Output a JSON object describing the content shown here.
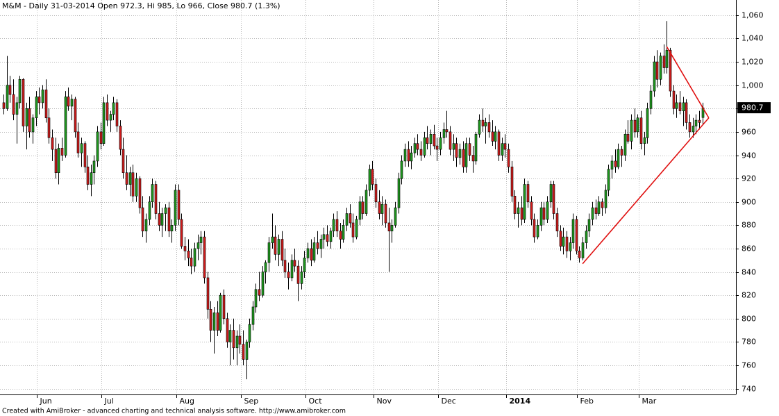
{
  "chart_data": {
    "type": "candlestick",
    "title": "M&M - Daily 31-03-2014 Open 972.3, Hi 985, Lo 966, Close 980.7 (1.3%)",
    "footer": "Created with AmiBroker - advanced charting and technical analysis software. http://www.amibroker.com",
    "up_color": "#1f9a1f",
    "down_color": "#d01c1c",
    "trendline_color": "#e01010",
    "grid": true,
    "ylim": [
      735,
      1073
    ],
    "yticks": [
      740,
      760,
      780,
      800,
      820,
      840,
      860,
      880,
      900,
      920,
      940,
      960,
      980,
      {
        "value": 1000,
        "label": "1,000"
      },
      {
        "value": 1020,
        "label": "1,020"
      },
      {
        "value": 1040,
        "label": "1,040"
      },
      {
        "value": 1060,
        "label": "1,060"
      }
    ],
    "categories": [
      null,
      null,
      null,
      null,
      null,
      null,
      null,
      null,
      null,
      null,
      null,
      "Jun",
      null,
      null,
      null,
      null,
      null,
      null,
      null,
      null,
      null,
      null,
      null,
      null,
      null,
      null,
      null,
      null,
      null,
      null,
      null,
      "Jul",
      null,
      null,
      null,
      null,
      null,
      null,
      null,
      null,
      null,
      null,
      null,
      null,
      null,
      null,
      null,
      null,
      null,
      null,
      null,
      null,
      null,
      null,
      "Aug",
      null,
      null,
      null,
      null,
      null,
      null,
      null,
      null,
      null,
      null,
      null,
      null,
      null,
      null,
      null,
      null,
      null,
      null,
      null,
      "Sep",
      null,
      null,
      null,
      null,
      null,
      null,
      null,
      null,
      null,
      null,
      null,
      null,
      null,
      null,
      null,
      null,
      null,
      null,
      null,
      "Oct",
      null,
      null,
      null,
      null,
      null,
      null,
      null,
      null,
      null,
      null,
      null,
      null,
      null,
      null,
      null,
      null,
      null,
      null,
      null,
      null,
      "Nov",
      null,
      null,
      null,
      null,
      null,
      null,
      null,
      null,
      null,
      null,
      null,
      null,
      null,
      null,
      null,
      null,
      null,
      null,
      null,
      "Dec",
      null,
      null,
      null,
      null,
      null,
      null,
      null,
      null,
      null,
      null,
      null,
      null,
      null,
      null,
      null,
      null,
      null,
      null,
      null,
      null,
      "2014",
      null,
      null,
      null,
      null,
      null,
      null,
      null,
      null,
      null,
      null,
      null,
      null,
      null,
      null,
      null,
      null,
      null,
      null,
      null,
      null,
      null,
      "Feb",
      null,
      null,
      null,
      null,
      null,
      null,
      null,
      null,
      null,
      null,
      null,
      null,
      null,
      null,
      null,
      null,
      null,
      null,
      "Mar",
      null,
      null,
      null,
      null,
      null,
      null,
      null,
      null,
      null,
      null,
      null,
      null,
      null,
      null,
      null,
      null,
      null,
      null,
      null
    ],
    "ohlc": [
      [
        985,
        992,
        975,
        980
      ],
      [
        980,
        1025,
        978,
        1000
      ],
      [
        1000,
        1008,
        985,
        992
      ],
      [
        992,
        1005,
        970,
        975
      ],
      [
        975,
        990,
        950,
        985
      ],
      [
        985,
        1008,
        980,
        1005
      ],
      [
        1005,
        1006,
        960,
        965
      ],
      [
        965,
        985,
        945,
        980
      ],
      [
        980,
        990,
        955,
        960
      ],
      [
        960,
        975,
        950,
        972
      ],
      [
        972,
        995,
        965,
        990
      ],
      [
        990,
        998,
        975,
        985
      ],
      [
        985,
        1000,
        980,
        996
      ],
      [
        996,
        1005,
        968,
        972
      ],
      [
        972,
        980,
        950,
        955
      ],
      [
        955,
        962,
        935,
        945
      ],
      [
        945,
        955,
        920,
        925
      ],
      [
        925,
        950,
        915,
        946
      ],
      [
        946,
        955,
        935,
        940
      ],
      [
        940,
        995,
        938,
        990
      ],
      [
        990,
        998,
        978,
        982
      ],
      [
        982,
        992,
        970,
        988
      ],
      [
        988,
        990,
        955,
        960
      ],
      [
        960,
        968,
        938,
        942
      ],
      [
        942,
        955,
        930,
        950
      ],
      [
        950,
        952,
        925,
        930
      ],
      [
        930,
        940,
        910,
        915
      ],
      [
        915,
        932,
        905,
        925
      ],
      [
        925,
        940,
        915,
        935
      ],
      [
        935,
        965,
        930,
        960
      ],
      [
        960,
        968,
        945,
        950
      ],
      [
        950,
        990,
        948,
        985
      ],
      [
        985,
        992,
        965,
        970
      ],
      [
        970,
        978,
        960,
        975
      ],
      [
        975,
        990,
        970,
        985
      ],
      [
        985,
        988,
        960,
        965
      ],
      [
        965,
        970,
        940,
        945
      ],
      [
        945,
        955,
        920,
        925
      ],
      [
        925,
        940,
        910,
        915
      ],
      [
        915,
        930,
        905,
        925
      ],
      [
        925,
        932,
        900,
        905
      ],
      [
        905,
        925,
        900,
        920
      ],
      [
        920,
        922,
        890,
        895
      ],
      [
        895,
        905,
        870,
        875
      ],
      [
        875,
        890,
        865,
        885
      ],
      [
        885,
        905,
        880,
        900
      ],
      [
        900,
        920,
        895,
        915
      ],
      [
        915,
        918,
        885,
        890
      ],
      [
        890,
        900,
        875,
        880
      ],
      [
        880,
        895,
        870,
        890
      ],
      [
        890,
        898,
        875,
        895
      ],
      [
        895,
        900,
        870,
        875
      ],
      [
        875,
        885,
        865,
        880
      ],
      [
        880,
        915,
        875,
        910
      ],
      [
        910,
        915,
        880,
        885
      ],
      [
        885,
        890,
        860,
        862
      ],
      [
        862,
        870,
        850,
        858
      ],
      [
        858,
        868,
        845,
        852
      ],
      [
        852,
        860,
        838,
        845
      ],
      [
        845,
        865,
        840,
        860
      ],
      [
        860,
        872,
        850,
        865
      ],
      [
        865,
        875,
        855,
        870
      ],
      [
        870,
        875,
        830,
        835
      ],
      [
        835,
        840,
        800,
        808
      ],
      [
        808,
        815,
        780,
        790
      ],
      [
        790,
        810,
        770,
        805
      ],
      [
        805,
        815,
        785,
        790
      ],
      [
        790,
        822,
        788,
        820
      ],
      [
        820,
        825,
        795,
        800
      ],
      [
        800,
        805,
        775,
        780
      ],
      [
        780,
        795,
        760,
        790
      ],
      [
        790,
        800,
        765,
        775
      ],
      [
        775,
        790,
        760,
        785
      ],
      [
        785,
        795,
        770,
        778
      ],
      [
        778,
        790,
        760,
        765
      ],
      [
        765,
        782,
        748,
        780
      ],
      [
        780,
        800,
        775,
        795
      ],
      [
        795,
        815,
        790,
        810
      ],
      [
        810,
        830,
        805,
        825
      ],
      [
        825,
        840,
        815,
        820
      ],
      [
        820,
        845,
        818,
        840
      ],
      [
        840,
        850,
        830,
        848
      ],
      [
        848,
        870,
        840,
        865
      ],
      [
        865,
        890,
        860,
        870
      ],
      [
        870,
        880,
        850,
        855
      ],
      [
        855,
        872,
        845,
        868
      ],
      [
        868,
        875,
        845,
        850
      ],
      [
        850,
        860,
        835,
        840
      ],
      [
        840,
        848,
        825,
        835
      ],
      [
        835,
        855,
        832,
        850
      ],
      [
        850,
        860,
        840,
        845
      ],
      [
        845,
        850,
        815,
        830
      ],
      [
        830,
        845,
        825,
        840
      ],
      [
        840,
        858,
        835,
        852
      ],
      [
        852,
        865,
        848,
        860
      ],
      [
        860,
        868,
        845,
        850
      ],
      [
        850,
        870,
        848,
        865
      ],
      [
        865,
        875,
        855,
        860
      ],
      [
        860,
        872,
        852,
        868
      ],
      [
        868,
        878,
        860,
        872
      ],
      [
        872,
        880,
        862,
        866
      ],
      [
        866,
        878,
        860,
        875
      ],
      [
        875,
        890,
        870,
        885
      ],
      [
        885,
        892,
        870,
        875
      ],
      [
        875,
        882,
        860,
        868
      ],
      [
        868,
        885,
        865,
        880
      ],
      [
        880,
        895,
        875,
        890
      ],
      [
        890,
        898,
        878,
        882
      ],
      [
        882,
        890,
        865,
        870
      ],
      [
        870,
        888,
        868,
        885
      ],
      [
        885,
        905,
        880,
        900
      ],
      [
        900,
        905,
        885,
        890
      ],
      [
        890,
        915,
        888,
        910
      ],
      [
        910,
        932,
        905,
        928
      ],
      [
        928,
        935,
        910,
        915
      ],
      [
        915,
        920,
        895,
        900
      ],
      [
        900,
        910,
        885,
        890
      ],
      [
        890,
        905,
        880,
        898
      ],
      [
        898,
        902,
        878,
        882
      ],
      [
        882,
        895,
        840,
        875
      ],
      [
        875,
        885,
        865,
        880
      ],
      [
        880,
        900,
        878,
        895
      ],
      [
        895,
        925,
        890,
        920
      ],
      [
        920,
        940,
        915,
        935
      ],
      [
        935,
        950,
        930,
        945
      ],
      [
        945,
        952,
        930,
        935
      ],
      [
        935,
        948,
        928,
        942
      ],
      [
        942,
        955,
        938,
        950
      ],
      [
        950,
        958,
        940,
        945
      ],
      [
        945,
        952,
        935,
        940
      ],
      [
        940,
        960,
        938,
        955
      ],
      [
        955,
        965,
        945,
        950
      ],
      [
        950,
        962,
        940,
        958
      ],
      [
        958,
        966,
        945,
        948
      ],
      [
        948,
        955,
        935,
        945
      ],
      [
        945,
        960,
        940,
        955
      ],
      [
        955,
        968,
        950,
        962
      ],
      [
        962,
        978,
        955,
        960
      ],
      [
        960,
        965,
        940,
        945
      ],
      [
        945,
        958,
        935,
        950
      ],
      [
        950,
        955,
        930,
        938
      ],
      [
        938,
        950,
        932,
        945
      ],
      [
        945,
        952,
        925,
        930
      ],
      [
        930,
        955,
        925,
        950
      ],
      [
        950,
        955,
        935,
        940
      ],
      [
        940,
        948,
        925,
        935
      ],
      [
        935,
        960,
        932,
        958
      ],
      [
        958,
        975,
        955,
        970
      ],
      [
        970,
        980,
        960,
        965
      ],
      [
        965,
        972,
        950,
        968
      ],
      [
        968,
        975,
        955,
        960
      ],
      [
        960,
        970,
        948,
        952
      ],
      [
        952,
        965,
        945,
        960
      ],
      [
        960,
        962,
        935,
        940
      ],
      [
        940,
        955,
        935,
        950
      ],
      [
        950,
        958,
        938,
        945
      ],
      [
        945,
        950,
        925,
        930
      ],
      [
        930,
        935,
        900,
        905
      ],
      [
        905,
        910,
        885,
        890
      ],
      [
        890,
        900,
        878,
        895
      ],
      [
        895,
        905,
        880,
        885
      ],
      [
        885,
        920,
        882,
        915
      ],
      [
        915,
        918,
        895,
        900
      ],
      [
        900,
        905,
        880,
        885
      ],
      [
        885,
        890,
        865,
        870
      ],
      [
        870,
        885,
        868,
        880
      ],
      [
        880,
        900,
        875,
        895
      ],
      [
        895,
        900,
        880,
        885
      ],
      [
        885,
        905,
        882,
        900
      ],
      [
        900,
        918,
        895,
        915
      ],
      [
        915,
        918,
        885,
        890
      ],
      [
        890,
        895,
        870,
        875
      ],
      [
        875,
        880,
        858,
        862
      ],
      [
        862,
        878,
        855,
        870
      ],
      [
        870,
        875,
        852,
        858
      ],
      [
        858,
        870,
        850,
        865
      ],
      [
        865,
        890,
        860,
        885
      ],
      [
        885,
        888,
        855,
        858
      ],
      [
        858,
        862,
        848,
        852
      ],
      [
        852,
        870,
        850,
        865
      ],
      [
        865,
        880,
        860,
        875
      ],
      [
        875,
        890,
        870,
        885
      ],
      [
        885,
        900,
        880,
        895
      ],
      [
        895,
        902,
        885,
        890
      ],
      [
        890,
        905,
        888,
        900
      ],
      [
        900,
        903,
        888,
        895
      ],
      [
        895,
        915,
        890,
        910
      ],
      [
        910,
        932,
        905,
        928
      ],
      [
        928,
        940,
        920,
        935
      ],
      [
        935,
        945,
        925,
        930
      ],
      [
        930,
        950,
        928,
        945
      ],
      [
        945,
        948,
        930,
        940
      ],
      [
        940,
        962,
        935,
        958
      ],
      [
        958,
        970,
        950,
        952
      ],
      [
        952,
        975,
        945,
        970
      ],
      [
        970,
        980,
        955,
        960
      ],
      [
        960,
        975,
        955,
        972
      ],
      [
        972,
        978,
        945,
        950
      ],
      [
        950,
        960,
        940,
        955
      ],
      [
        955,
        985,
        950,
        980
      ],
      [
        980,
        1000,
        975,
        995
      ],
      [
        995,
        1025,
        990,
        1020
      ],
      [
        1020,
        1030,
        998,
        1005
      ],
      [
        1005,
        1028,
        1000,
        1025
      ],
      [
        1025,
        1035,
        1010,
        1015
      ],
      [
        1015,
        1055,
        1010,
        1030
      ],
      [
        1030,
        1032,
        990,
        995
      ],
      [
        995,
        1000,
        975,
        980
      ],
      [
        980,
        992,
        972,
        985
      ],
      [
        985,
        995,
        975,
        978
      ],
      [
        978,
        990,
        965,
        985
      ],
      [
        985,
        988,
        962,
        968
      ],
      [
        968,
        975,
        955,
        960
      ],
      [
        960,
        972,
        955,
        965
      ],
      [
        965,
        975,
        958,
        970
      ],
      [
        970,
        978,
        962,
        968
      ],
      [
        972.3,
        985,
        966,
        980.7
      ]
    ],
    "trendlines": [
      {
        "x": [
          179,
          218
        ],
        "y": [
          847,
          972
        ]
      },
      {
        "x": [
          205,
          218
        ],
        "y": [
          1033,
          972
        ]
      }
    ]
  }
}
